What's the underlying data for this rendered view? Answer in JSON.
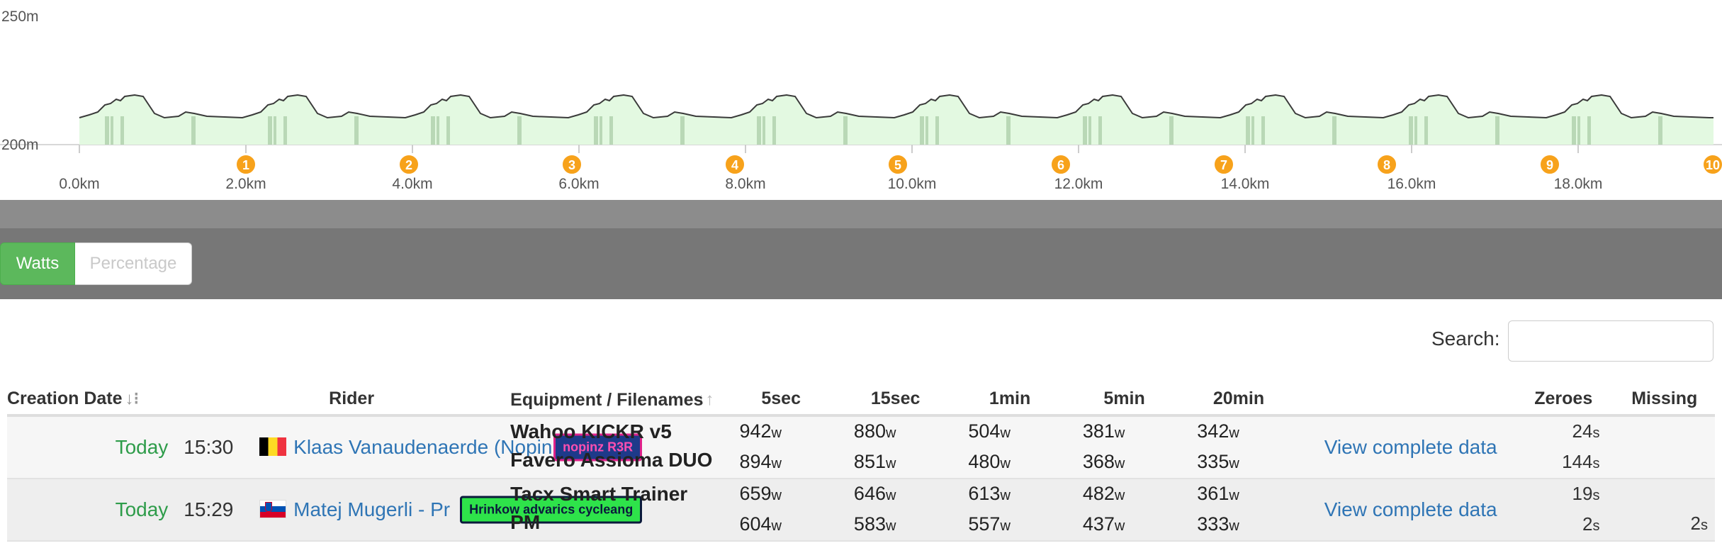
{
  "profile": {
    "y_top_label": "250m",
    "y_bottom_label": "200m",
    "x_labels": [
      "0.0km",
      "2.0km",
      "4.0km",
      "6.0km",
      "8.0km",
      "10.0km",
      "12.0km",
      "14.0km",
      "16.0km",
      "18.0km"
    ],
    "lap_markers": [
      "1",
      "2",
      "3",
      "4",
      "5",
      "6",
      "7",
      "8",
      "9",
      "10"
    ],
    "fill_color": "#e3f9e1",
    "line_color": "#3a3a3a",
    "marker_color": "#f7a21b"
  },
  "unit_toggle": {
    "watts_label": "Watts",
    "percentage_label": "Percentage",
    "active": "Watts"
  },
  "search": {
    "label": "Search:",
    "value": ""
  },
  "table": {
    "headers": {
      "creation_date": "Creation Date",
      "rider": "Rider",
      "equipment": "Equipment / Filenames",
      "p5s": "5sec",
      "p15s": "15sec",
      "p1m": "1min",
      "p5m": "5min",
      "p20m": "20min",
      "zeroes": "Zeroes",
      "missing": "Missing"
    },
    "rows": [
      {
        "date": "Today",
        "time": "15:30",
        "rider": "Klaas Vanaudenaerde (Nopin",
        "team": "nopinz R3R",
        "equip1": "Wahoo KICKR v5",
        "equip2": "Favero Assioma DUO",
        "p5s_1": "942",
        "p15s_1": "880",
        "p1m_1": "504",
        "p5m_1": "381",
        "p20m_1": "342",
        "p5s_2": "894",
        "p15s_2": "851",
        "p1m_2": "480",
        "p5m_2": "368",
        "p20m_2": "335",
        "view": "View complete data",
        "zeroes_1": "24",
        "zeroes_2": "144",
        "missing_1": "",
        "missing_2": ""
      },
      {
        "date": "Today",
        "time": "15:29",
        "rider": "Matej Mugerli - Pr",
        "team": "Hrinkow advarics cycleang",
        "equip1": "Tacx Smart Trainer",
        "equip2": "PM",
        "p5s_1": "659",
        "p15s_1": "646",
        "p1m_1": "613",
        "p5m_1": "482",
        "p20m_1": "361",
        "p5s_2": "604",
        "p15s_2": "583",
        "p1m_2": "557",
        "p5m_2": "437",
        "p20m_2": "333",
        "view": "View complete data",
        "zeroes_1": "19",
        "zeroes_2": "2",
        "missing_1": "",
        "missing_2": "2"
      }
    ],
    "units": {
      "watts": "w",
      "seconds": "s"
    }
  }
}
